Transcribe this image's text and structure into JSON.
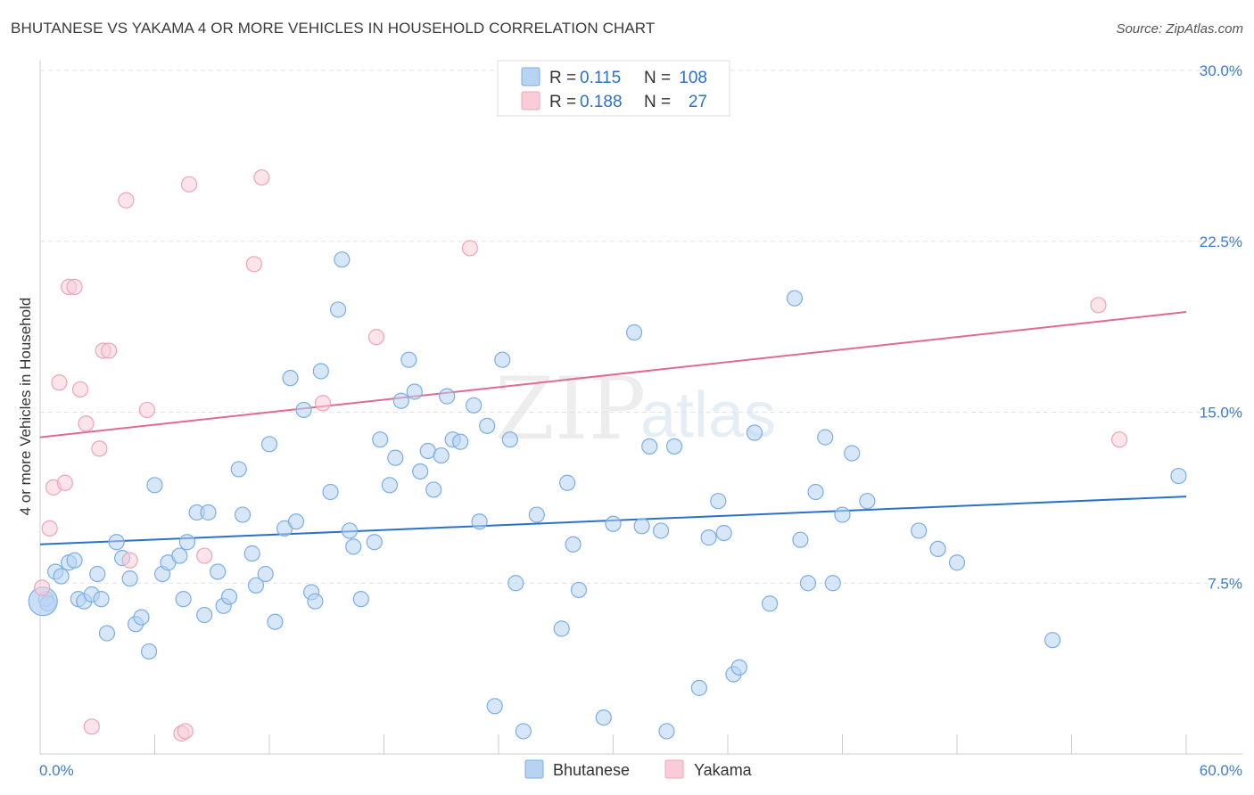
{
  "header": {
    "title": "BHUTANESE VS YAKAMA 4 OR MORE VEHICLES IN HOUSEHOLD CORRELATION CHART",
    "source": "Source: ZipAtlas.com"
  },
  "watermark": {
    "zip": "ZIP",
    "atlas": "atlas"
  },
  "chart_data": {
    "type": "scatter",
    "title": "BHUTANESE VS YAKAMA 4 OR MORE VEHICLES IN HOUSEHOLD CORRELATION CHART",
    "xlabel": "",
    "ylabel": "4 or more Vehicles in Household",
    "xlim": [
      0,
      60
    ],
    "ylim": [
      0,
      30
    ],
    "x_tick_labels": [
      "0.0%",
      "60.0%"
    ],
    "y_ticks": [
      7.5,
      15.0,
      22.5,
      30.0
    ],
    "y_tick_labels": [
      "7.5%",
      "15.0%",
      "22.5%",
      "30.0%"
    ],
    "grid": true,
    "legend": {
      "position": "top-center",
      "entries": [
        {
          "series": "Bhutanese",
          "r_label": "R =",
          "r_value": "0.115",
          "n_label": "N =",
          "n_value": "108"
        },
        {
          "series": "Yakama",
          "r_label": "R =",
          "r_value": "0.188",
          "n_label": "N =",
          "n_value": "27"
        }
      ]
    },
    "series": [
      {
        "name": "Bhutanese",
        "color": "#7aaee6",
        "fill": "#b8d3f2",
        "trend_color": "#2a72c9",
        "trend": {
          "x0": 0,
          "y0": 9.2,
          "x1": 60,
          "y1": 11.3
        },
        "points": [
          [
            0.3,
            6.8
          ],
          [
            0.4,
            6.6
          ],
          [
            0.8,
            8.0
          ],
          [
            1.1,
            7.8
          ],
          [
            1.5,
            8.4
          ],
          [
            1.8,
            8.5
          ],
          [
            2.0,
            6.8
          ],
          [
            2.3,
            6.7
          ],
          [
            2.7,
            7.0
          ],
          [
            3.2,
            6.8
          ],
          [
            3.0,
            7.9
          ],
          [
            3.5,
            5.3
          ],
          [
            4.0,
            9.3
          ],
          [
            4.3,
            8.6
          ],
          [
            4.7,
            7.7
          ],
          [
            5.0,
            5.7
          ],
          [
            5.3,
            6.0
          ],
          [
            5.7,
            4.5
          ],
          [
            6.0,
            11.8
          ],
          [
            6.4,
            7.9
          ],
          [
            6.7,
            8.4
          ],
          [
            7.3,
            8.7
          ],
          [
            7.5,
            6.8
          ],
          [
            7.7,
            9.3
          ],
          [
            8.2,
            10.6
          ],
          [
            8.6,
            6.1
          ],
          [
            8.8,
            10.6
          ],
          [
            9.3,
            8.0
          ],
          [
            9.6,
            6.5
          ],
          [
            9.9,
            6.9
          ],
          [
            10.4,
            12.5
          ],
          [
            10.6,
            10.5
          ],
          [
            11.1,
            8.8
          ],
          [
            11.3,
            7.4
          ],
          [
            11.8,
            7.9
          ],
          [
            12.0,
            13.6
          ],
          [
            12.3,
            5.8
          ],
          [
            12.8,
            9.9
          ],
          [
            13.1,
            16.5
          ],
          [
            13.4,
            10.2
          ],
          [
            13.8,
            15.1
          ],
          [
            14.2,
            7.1
          ],
          [
            14.4,
            6.7
          ],
          [
            14.7,
            16.8
          ],
          [
            15.2,
            11.5
          ],
          [
            15.6,
            19.5
          ],
          [
            15.8,
            21.7
          ],
          [
            16.2,
            9.8
          ],
          [
            16.4,
            9.1
          ],
          [
            16.8,
            6.8
          ],
          [
            17.5,
            9.3
          ],
          [
            17.8,
            13.8
          ],
          [
            18.3,
            11.8
          ],
          [
            18.6,
            13.0
          ],
          [
            18.9,
            15.5
          ],
          [
            19.3,
            17.3
          ],
          [
            19.6,
            15.9
          ],
          [
            19.9,
            12.4
          ],
          [
            20.3,
            13.3
          ],
          [
            20.6,
            11.6
          ],
          [
            21.0,
            13.1
          ],
          [
            21.3,
            15.7
          ],
          [
            21.6,
            13.8
          ],
          [
            22.0,
            13.7
          ],
          [
            22.7,
            15.3
          ],
          [
            23.0,
            10.2
          ],
          [
            23.4,
            14.4
          ],
          [
            23.8,
            2.1
          ],
          [
            24.2,
            17.3
          ],
          [
            24.6,
            13.8
          ],
          [
            24.9,
            7.5
          ],
          [
            25.3,
            1.0
          ],
          [
            26.0,
            10.5
          ],
          [
            27.3,
            5.5
          ],
          [
            27.6,
            11.9
          ],
          [
            27.9,
            9.2
          ],
          [
            28.2,
            7.2
          ],
          [
            29.5,
            1.6
          ],
          [
            30.0,
            10.1
          ],
          [
            31.1,
            18.5
          ],
          [
            31.5,
            10.0
          ],
          [
            31.9,
            13.5
          ],
          [
            32.5,
            9.8
          ],
          [
            32.8,
            1.0
          ],
          [
            33.2,
            13.5
          ],
          [
            34.5,
            2.9
          ],
          [
            35.0,
            9.5
          ],
          [
            35.5,
            11.1
          ],
          [
            35.8,
            9.7
          ],
          [
            36.3,
            3.5
          ],
          [
            36.6,
            3.8
          ],
          [
            37.4,
            14.1
          ],
          [
            38.2,
            6.6
          ],
          [
            39.5,
            20.0
          ],
          [
            39.8,
            9.4
          ],
          [
            40.2,
            7.5
          ],
          [
            40.6,
            11.5
          ],
          [
            41.1,
            13.9
          ],
          [
            41.5,
            7.5
          ],
          [
            42.0,
            10.5
          ],
          [
            42.5,
            13.2
          ],
          [
            43.3,
            11.1
          ],
          [
            46.0,
            9.8
          ],
          [
            47.0,
            9.0
          ],
          [
            48.0,
            8.4
          ],
          [
            53.0,
            5.0
          ],
          [
            59.6,
            12.2
          ],
          [
            0.15,
            6.7
          ]
        ]
      },
      {
        "name": "Yakama",
        "color": "#f0a3b8",
        "fill": "#f8cdd9",
        "trend_color": "#e06a90",
        "trend": {
          "x0": 0,
          "y0": 13.9,
          "x1": 60,
          "y1": 19.4
        },
        "points": [
          [
            0.1,
            7.3
          ],
          [
            0.5,
            9.9
          ],
          [
            0.7,
            11.7
          ],
          [
            1.0,
            16.3
          ],
          [
            1.3,
            11.9
          ],
          [
            1.5,
            20.5
          ],
          [
            1.8,
            20.5
          ],
          [
            2.1,
            16.0
          ],
          [
            2.4,
            14.5
          ],
          [
            2.7,
            1.2
          ],
          [
            3.1,
            13.4
          ],
          [
            3.3,
            17.7
          ],
          [
            3.6,
            17.7
          ],
          [
            4.5,
            24.3
          ],
          [
            4.7,
            8.5
          ],
          [
            5.6,
            15.1
          ],
          [
            7.4,
            0.9
          ],
          [
            7.6,
            1.0
          ],
          [
            7.8,
            25.0
          ],
          [
            8.6,
            8.7
          ],
          [
            11.2,
            21.5
          ],
          [
            11.6,
            25.3
          ],
          [
            14.8,
            15.4
          ],
          [
            17.6,
            18.3
          ],
          [
            22.5,
            22.2
          ],
          [
            55.4,
            19.7
          ],
          [
            56.5,
            13.8
          ]
        ]
      }
    ]
  },
  "bottom_legend": [
    "Bhutanese",
    "Yakama"
  ]
}
